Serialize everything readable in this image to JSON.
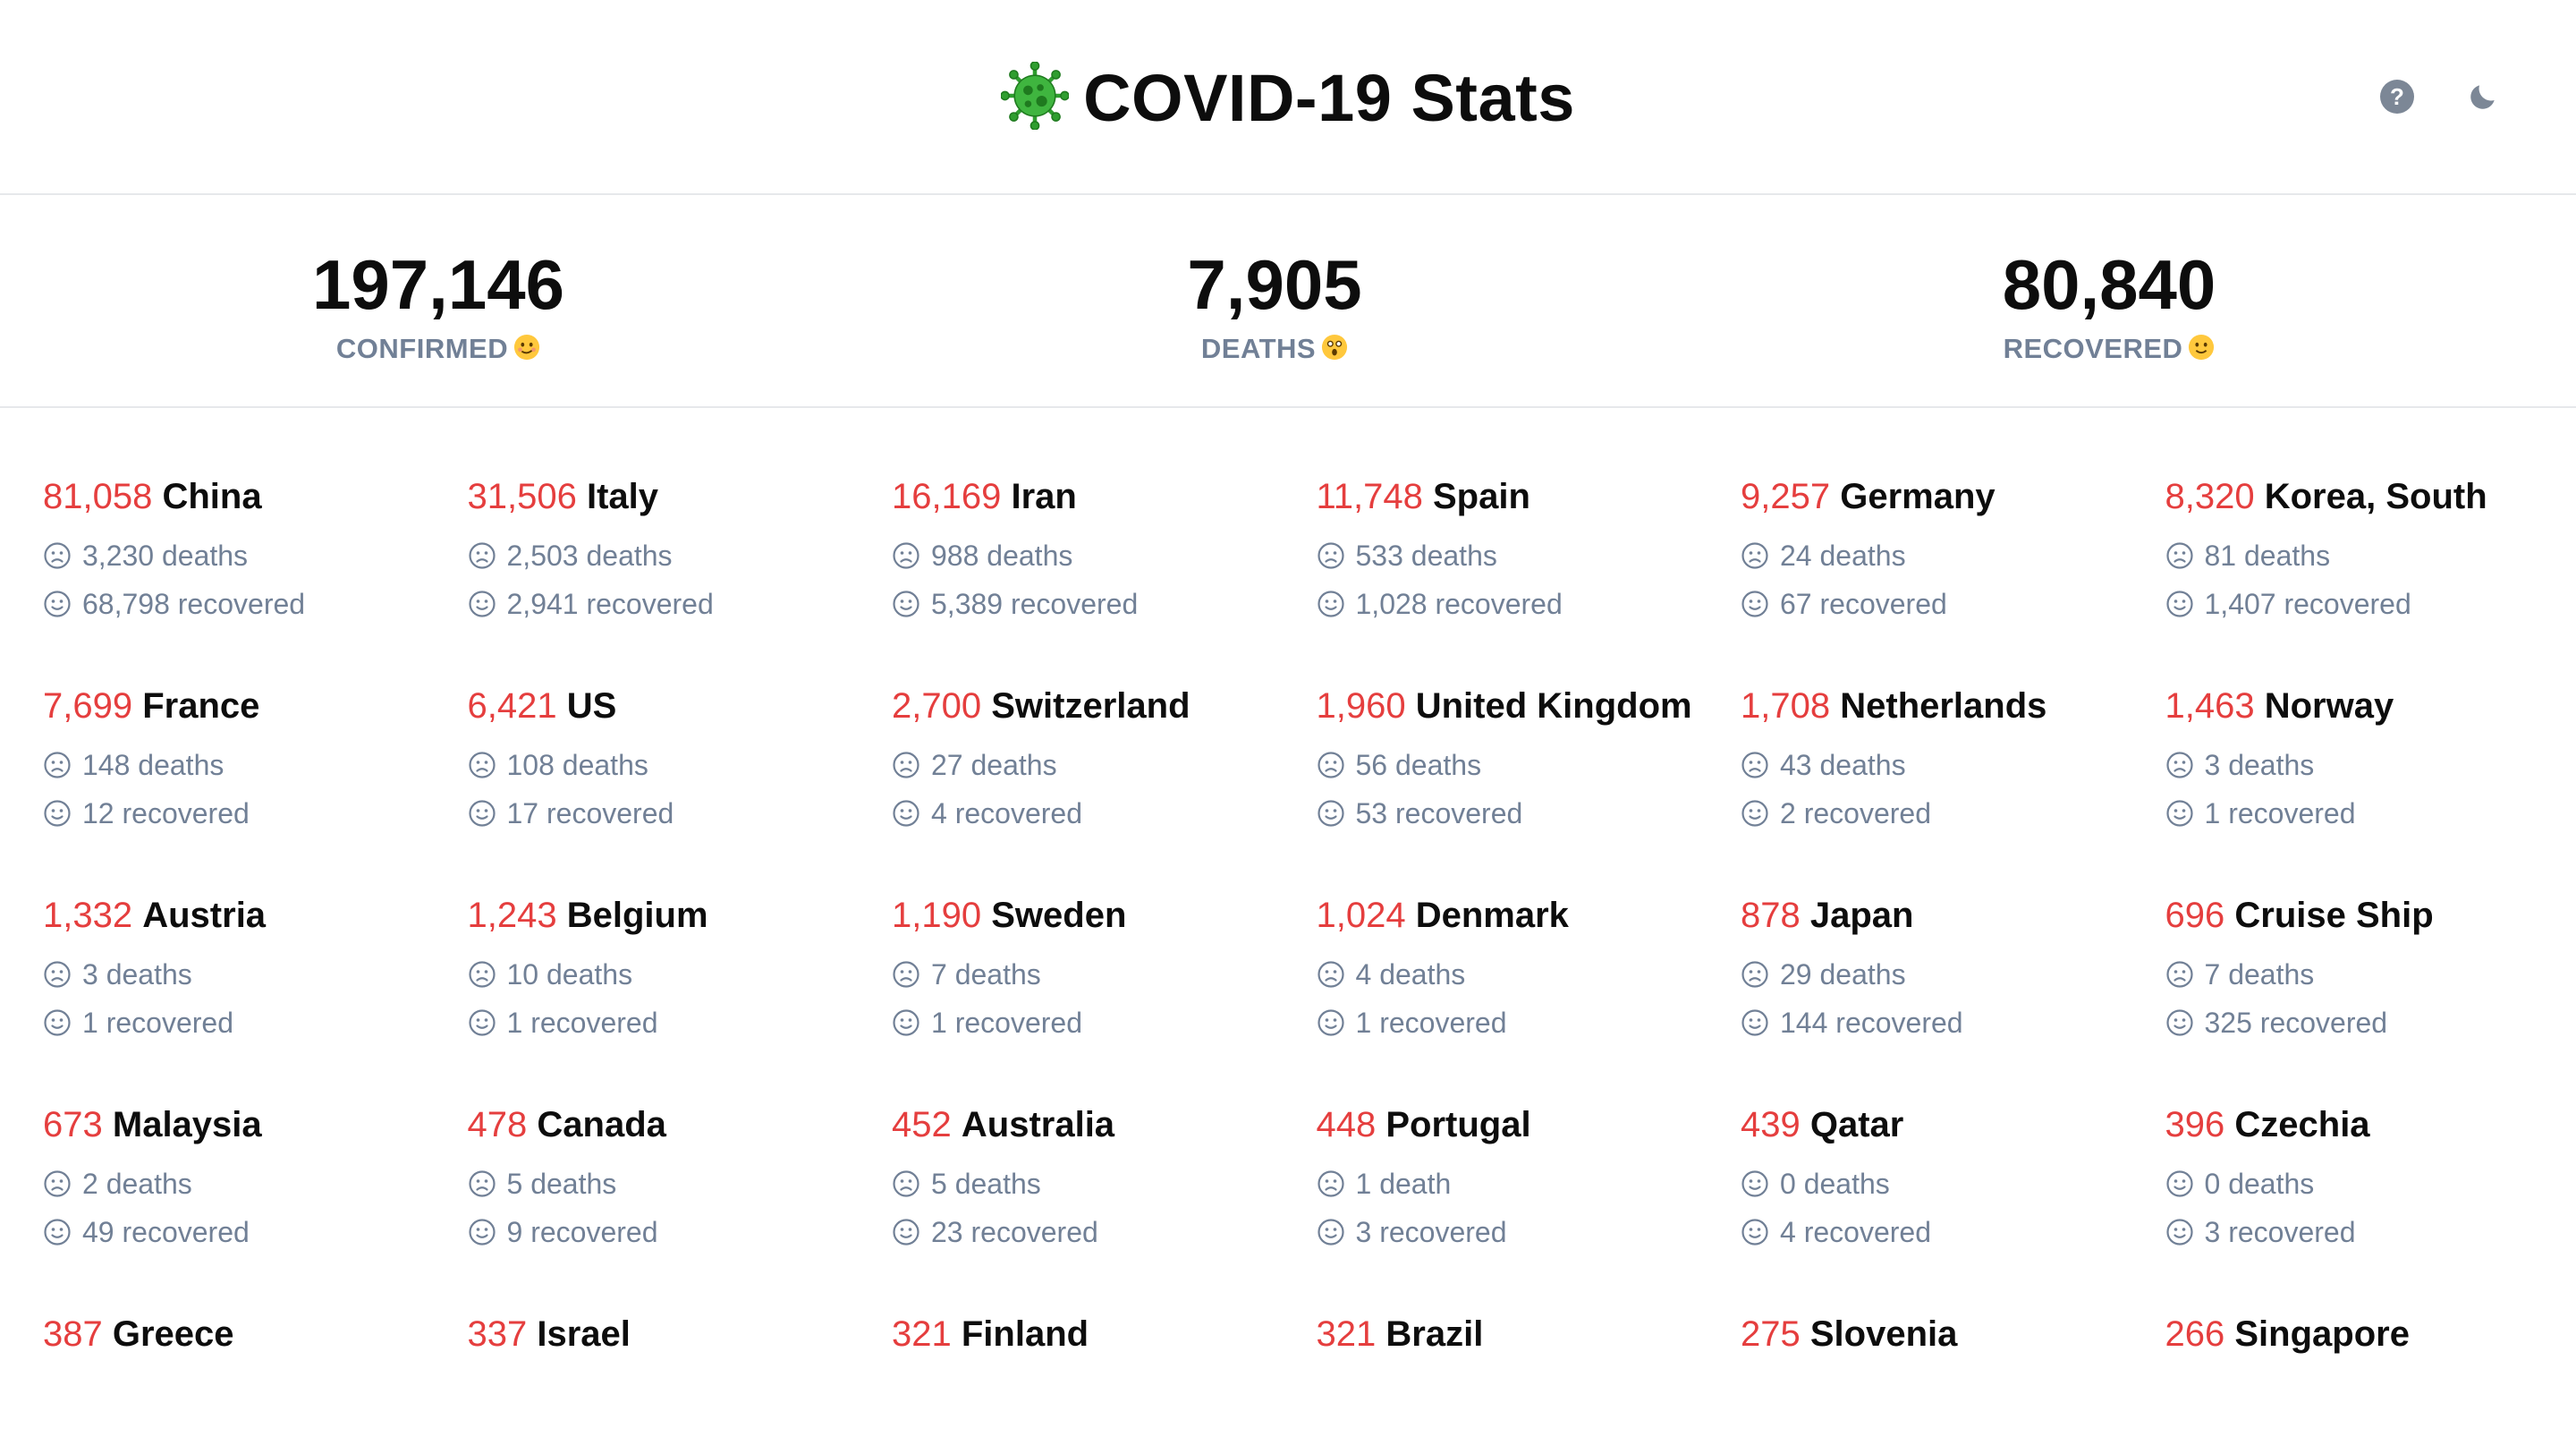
{
  "header": {
    "title": "COVID-19 Stats",
    "virus_icon": "virus-icon",
    "help_icon": "question-circle-icon",
    "dark_mode_icon": "moon-icon",
    "help_mark": "?"
  },
  "totals": {
    "confirmed": {
      "value": "197,146",
      "label": "CONFIRMED"
    },
    "deaths": {
      "value": "7,905",
      "label": "DEATHS"
    },
    "recovered": {
      "value": "80,840",
      "label": "RECOVERED"
    }
  },
  "colors": {
    "count_red": "#e53e3e",
    "muted_gray": "#718096",
    "border": "#e6e8eb"
  },
  "countries": [
    {
      "count": "81,058",
      "name": "China",
      "deaths": "3,230 deaths",
      "recovered": "68,798 recovered"
    },
    {
      "count": "31,506",
      "name": "Italy",
      "deaths": "2,503 deaths",
      "recovered": "2,941 recovered"
    },
    {
      "count": "16,169",
      "name": "Iran",
      "deaths": "988 deaths",
      "recovered": "5,389 recovered"
    },
    {
      "count": "11,748",
      "name": "Spain",
      "deaths": "533 deaths",
      "recovered": "1,028 recovered"
    },
    {
      "count": "9,257",
      "name": "Germany",
      "deaths": "24 deaths",
      "recovered": "67 recovered"
    },
    {
      "count": "8,320",
      "name": "Korea, South",
      "deaths": "81 deaths",
      "recovered": "1,407 recovered"
    },
    {
      "count": "7,699",
      "name": "France",
      "deaths": "148 deaths",
      "recovered": "12 recovered"
    },
    {
      "count": "6,421",
      "name": "US",
      "deaths": "108 deaths",
      "recovered": "17 recovered"
    },
    {
      "count": "2,700",
      "name": "Switzerland",
      "deaths": "27 deaths",
      "recovered": "4 recovered"
    },
    {
      "count": "1,960",
      "name": "United Kingdom",
      "deaths": "56 deaths",
      "recovered": "53 recovered"
    },
    {
      "count": "1,708",
      "name": "Netherlands",
      "deaths": "43 deaths",
      "recovered": "2 recovered"
    },
    {
      "count": "1,463",
      "name": "Norway",
      "deaths": "3 deaths",
      "recovered": "1 recovered"
    },
    {
      "count": "1,332",
      "name": "Austria",
      "deaths": "3 deaths",
      "recovered": "1 recovered"
    },
    {
      "count": "1,243",
      "name": "Belgium",
      "deaths": "10 deaths",
      "recovered": "1 recovered"
    },
    {
      "count": "1,190",
      "name": "Sweden",
      "deaths": "7 deaths",
      "recovered": "1 recovered"
    },
    {
      "count": "1,024",
      "name": "Denmark",
      "deaths": "4 deaths",
      "recovered": "1 recovered"
    },
    {
      "count": "878",
      "name": "Japan",
      "deaths": "29 deaths",
      "recovered": "144 recovered"
    },
    {
      "count": "696",
      "name": "Cruise Ship",
      "deaths": "7 deaths",
      "recovered": "325 recovered"
    },
    {
      "count": "673",
      "name": "Malaysia",
      "deaths": "2 deaths",
      "recovered": "49 recovered"
    },
    {
      "count": "478",
      "name": "Canada",
      "deaths": "5 deaths",
      "recovered": "9 recovered"
    },
    {
      "count": "452",
      "name": "Australia",
      "deaths": "5 deaths",
      "recovered": "23 recovered"
    },
    {
      "count": "448",
      "name": "Portugal",
      "deaths": "1 death",
      "recovered": "3 recovered"
    },
    {
      "count": "439",
      "name": "Qatar",
      "deaths": "0 deaths",
      "recovered": "4 recovered"
    },
    {
      "count": "396",
      "name": "Czechia",
      "deaths": "0 deaths",
      "recovered": "3 recovered"
    },
    {
      "count": "387",
      "name": "Greece",
      "deaths": "",
      "recovered": ""
    },
    {
      "count": "337",
      "name": "Israel",
      "deaths": "",
      "recovered": ""
    },
    {
      "count": "321",
      "name": "Finland",
      "deaths": "",
      "recovered": ""
    },
    {
      "count": "321",
      "name": "Brazil",
      "deaths": "",
      "recovered": ""
    },
    {
      "count": "275",
      "name": "Slovenia",
      "deaths": "",
      "recovered": ""
    },
    {
      "count": "266",
      "name": "Singapore",
      "deaths": "",
      "recovered": ""
    }
  ]
}
